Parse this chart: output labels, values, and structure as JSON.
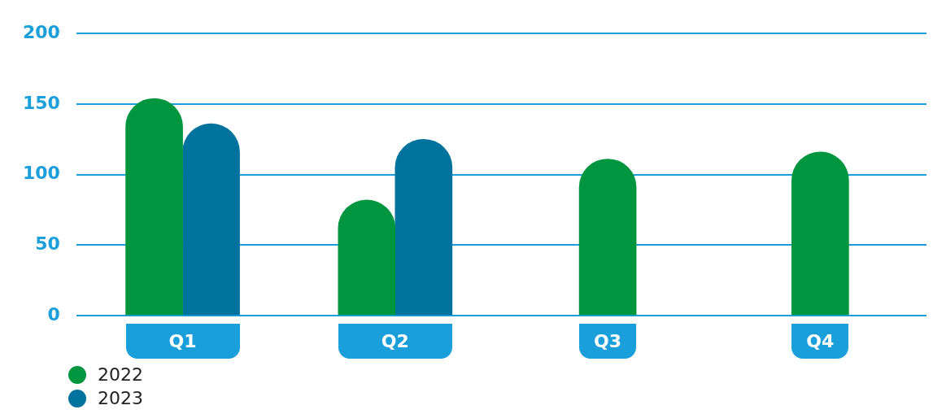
{
  "chart_data": {
    "type": "bar",
    "categories": [
      "Q1",
      "Q2",
      "Q3",
      "Q4"
    ],
    "series": [
      {
        "name": "2022",
        "color": "#00963f",
        "values": [
          154,
          82,
          111,
          116
        ]
      },
      {
        "name": "2023",
        "color": "#00729e",
        "values": [
          136,
          125,
          null,
          null
        ]
      }
    ],
    "ylim": [
      0,
      200
    ],
    "yticks": [
      0,
      50,
      100,
      150,
      200
    ],
    "grid": "y",
    "legend": "bottom left"
  }
}
